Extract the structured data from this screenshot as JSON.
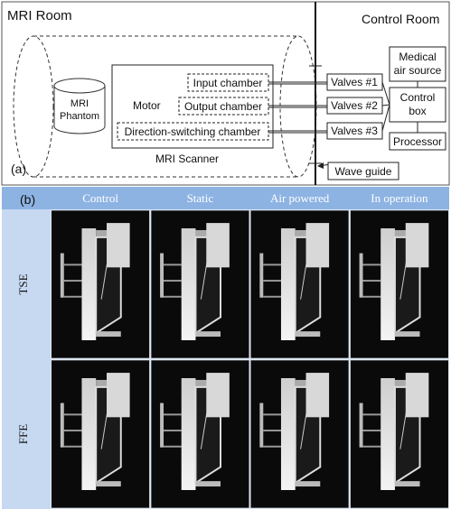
{
  "panel_a": {
    "label": "(a)",
    "mri_room": "MRI Room",
    "control_room": "Control Room",
    "phantom": [
      "MRI",
      "Phantom"
    ],
    "motor": "Motor",
    "chambers": [
      "Input chamber",
      "Output chamber",
      "Direction-switching chamber"
    ],
    "valves": [
      "Valves #1",
      "Valves #2",
      "Valves #3"
    ],
    "air_source": [
      "Medical",
      "air source"
    ],
    "control_box": [
      "Control",
      "box"
    ],
    "processor": "Processor",
    "wave_guide": "Wave guide",
    "scanner": "MRI Scanner"
  },
  "panel_b": {
    "label": "(b)",
    "columns": [
      "Control",
      "Static",
      "Air powered",
      "In operation"
    ],
    "rows": [
      "TSE",
      "FFE"
    ]
  }
}
